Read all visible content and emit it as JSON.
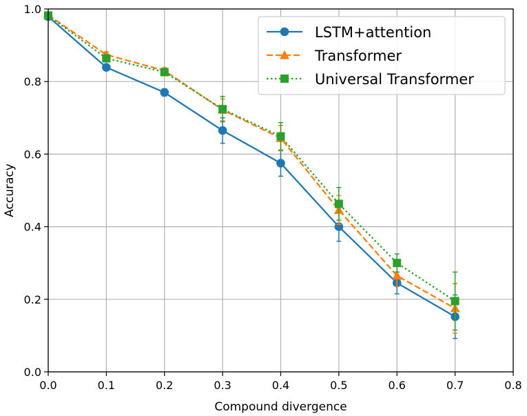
{
  "chart_data": {
    "type": "line",
    "xlabel": "Compound divergence",
    "ylabel": "Accuracy",
    "xlim": [
      0.0,
      0.8
    ],
    "ylim": [
      0.0,
      1.0
    ],
    "xticks": [
      "0.0",
      "0.1",
      "0.2",
      "0.3",
      "0.4",
      "0.5",
      "0.6",
      "0.7",
      "0.8"
    ],
    "yticks": [
      "0.0",
      "0.2",
      "0.4",
      "0.6",
      "0.8",
      "1.0"
    ],
    "grid": true,
    "legend_position": "top-right",
    "series": [
      {
        "name": "LSTM+attention",
        "color": "#1f77b4",
        "line_style": "solid",
        "marker": "circle",
        "x": [
          0.0,
          0.1,
          0.2,
          0.3,
          0.4,
          0.5,
          0.6,
          0.7
        ],
        "y": [
          0.979,
          0.839,
          0.77,
          0.665,
          0.575,
          0.4,
          0.245,
          0.152
        ],
        "err": [
          0.006,
          0.008,
          0.01,
          0.035,
          0.036,
          0.04,
          0.03,
          0.06
        ]
      },
      {
        "name": "Transformer",
        "color": "#ff7f0e",
        "line_style": "dashed",
        "marker": "triangle",
        "x": [
          0.0,
          0.1,
          0.2,
          0.3,
          0.4,
          0.5,
          0.6,
          0.7
        ],
        "y": [
          0.983,
          0.874,
          0.83,
          0.722,
          0.644,
          0.446,
          0.265,
          0.175
        ],
        "err": [
          0.006,
          0.008,
          0.008,
          0.03,
          0.035,
          0.04,
          0.03,
          0.068
        ]
      },
      {
        "name": "Universal Transformer",
        "color": "#2ca02c",
        "line_style": "dotted",
        "marker": "square",
        "x": [
          0.0,
          0.1,
          0.2,
          0.3,
          0.4,
          0.5,
          0.6,
          0.7
        ],
        "y": [
          0.982,
          0.864,
          0.826,
          0.724,
          0.649,
          0.463,
          0.3,
          0.195
        ],
        "err": [
          0.006,
          0.01,
          0.01,
          0.035,
          0.038,
          0.045,
          0.025,
          0.08
        ]
      }
    ]
  }
}
